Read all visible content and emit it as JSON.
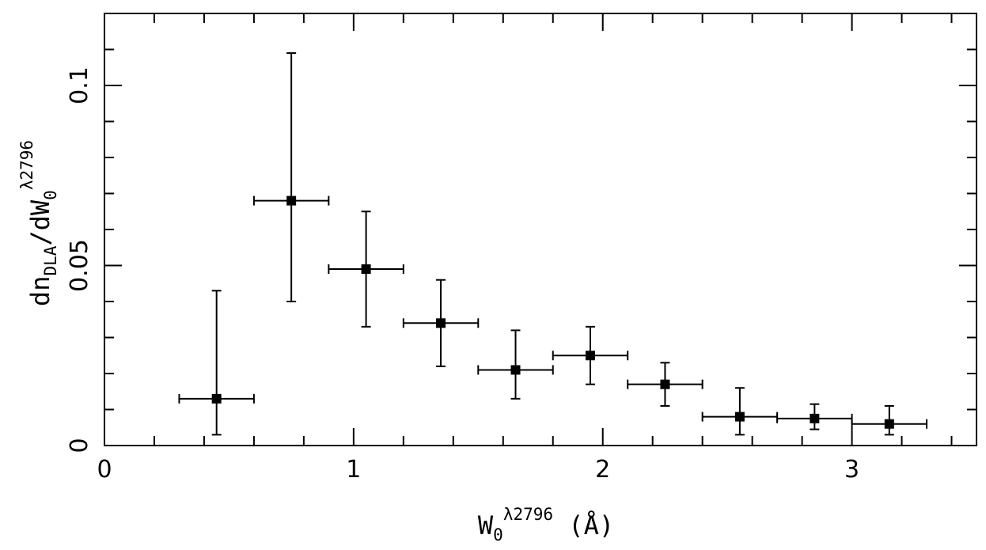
{
  "chart_data": {
    "type": "scatter",
    "title": "",
    "xlabel": {
      "base": "W",
      "subscript": "0",
      "superscript": "λ2796",
      "unit": "(Å)"
    },
    "ylabel": {
      "prefix": "dn",
      "subscript": "DLA",
      "middle": "/dW",
      "sub2": "0",
      "superscript": "λ2796"
    },
    "xlim": [
      0,
      3.5
    ],
    "ylim": [
      0,
      0.12
    ],
    "xticks": [
      0,
      1,
      2,
      3
    ],
    "xtick_labels": [
      "0",
      "1",
      "2",
      "3"
    ],
    "xminor_step": 0.2,
    "yticks": [
      0,
      0.05,
      0.1
    ],
    "ytick_labels": [
      "0",
      "0.05",
      "0.1"
    ],
    "yminor_step": 0.01,
    "grid": false,
    "legend": "none",
    "marker": "filled-square",
    "color": "#000000",
    "points": [
      {
        "x": 0.45,
        "y": 0.013,
        "xerr": 0.15,
        "ylow": 0.003,
        "yhigh": 0.043
      },
      {
        "x": 0.75,
        "y": 0.068,
        "xerr": 0.15,
        "ylow": 0.04,
        "yhigh": 0.109
      },
      {
        "x": 1.05,
        "y": 0.049,
        "xerr": 0.15,
        "ylow": 0.033,
        "yhigh": 0.065
      },
      {
        "x": 1.35,
        "y": 0.034,
        "xerr": 0.15,
        "ylow": 0.022,
        "yhigh": 0.046
      },
      {
        "x": 1.65,
        "y": 0.021,
        "xerr": 0.15,
        "ylow": 0.013,
        "yhigh": 0.032
      },
      {
        "x": 1.95,
        "y": 0.025,
        "xerr": 0.15,
        "ylow": 0.017,
        "yhigh": 0.033
      },
      {
        "x": 2.25,
        "y": 0.017,
        "xerr": 0.15,
        "ylow": 0.011,
        "yhigh": 0.023
      },
      {
        "x": 2.55,
        "y": 0.008,
        "xerr": 0.15,
        "ylow": 0.003,
        "yhigh": 0.016
      },
      {
        "x": 2.85,
        "y": 0.0075,
        "xerr": 0.15,
        "ylow": 0.0045,
        "yhigh": 0.0115
      },
      {
        "x": 3.15,
        "y": 0.006,
        "xerr": 0.15,
        "ylow": 0.003,
        "yhigh": 0.011
      }
    ]
  }
}
